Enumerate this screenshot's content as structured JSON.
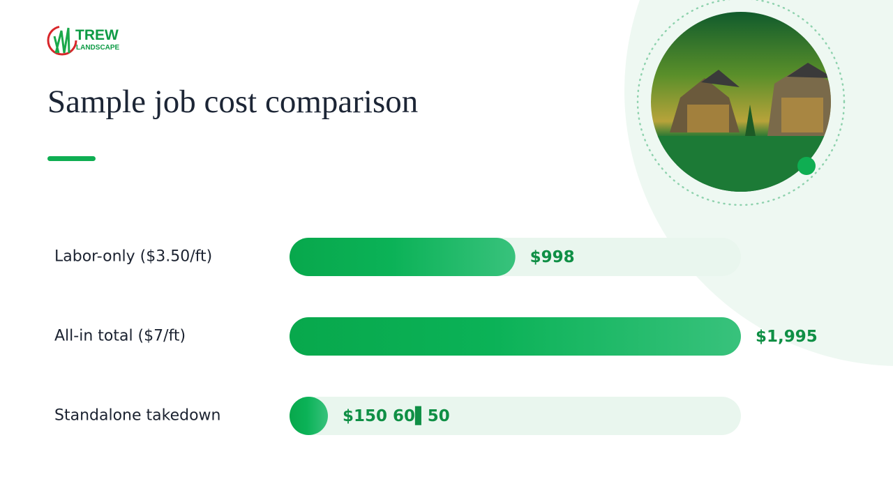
{
  "logo": {
    "name": "TREW",
    "tagline": "LANDSCAPE"
  },
  "chart_data": {
    "type": "bar",
    "orientation": "horizontal",
    "title": "Sample job cost comparison",
    "categories": [
      "Labor-only ($3.50/ft)",
      "All-in total ($7/ft)",
      "Standalone takedown"
    ],
    "values": [
      998,
      1995,
      150
    ],
    "value_labels": [
      "$998",
      "$1,995",
      "$150 60▌50"
    ],
    "xlim": [
      0,
      1995
    ],
    "color": "#0aa84f"
  }
}
